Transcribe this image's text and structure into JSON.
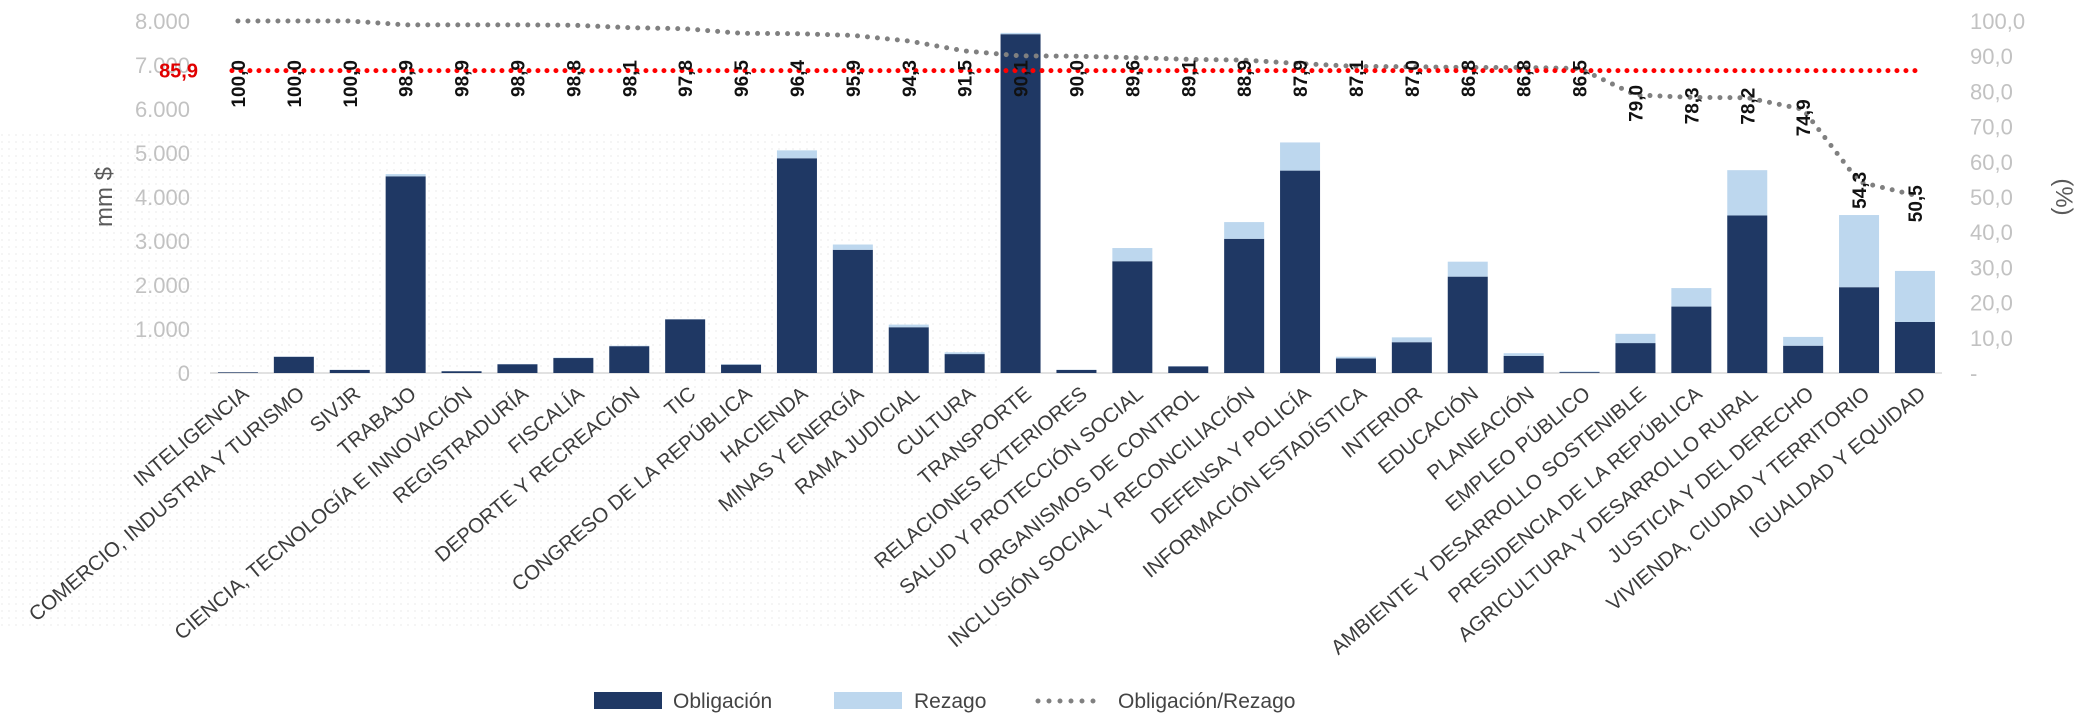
{
  "chart_data": {
    "type": "bar",
    "stacked": true,
    "categories": [
      "INTELIGENCIA",
      "COMERCIO, INDUSTRIA Y TURISMO",
      "SIVJR",
      "TRABAJO",
      "CIENCIA, TECNOLOGÍA E INNOVACIÓN",
      "REGISTRADURÍA",
      "FISCALÍA",
      "DEPORTE Y RECREACIÓN",
      "TIC",
      "CONGRESO DE LA REPÚBLICA",
      "HACIENDA",
      "MINAS Y ENERGÍA",
      "RAMA JUDICIAL",
      "CULTURA",
      "TRANSPORTE",
      "RELACIONES EXTERIORES",
      "SALUD Y PROTECCIÓN SOCIAL",
      "ORGANISMOS DE CONTROL",
      "INCLUSIÓN SOCIAL Y RECONCILIACIÓN",
      "DEFENSA Y POLICÍA",
      "INFORMACIÓN ESTADÍSTICA",
      "INTERIOR",
      "EDUCACIÓN",
      "PLANEACIÓN",
      "EMPLEO PÚBLICO",
      "AMBIENTE Y DESARROLLO SOSTENIBLE",
      "PRESIDENCIA DE LA REPÚBLICA",
      "AGRICULTURA Y DESARROLLO RURAL",
      "JUSTICIA Y DEL DERECHO",
      "VIVIENDA, CIUDAD Y TERRITORIO",
      "IGUALDAD Y EQUIDAD"
    ],
    "series": [
      {
        "name": "Obligación",
        "color": "#1f3864",
        "values": [
          15,
          370,
          70,
          4470,
          40,
          200,
          340,
          610,
          1220,
          190,
          4880,
          2800,
          1040,
          430,
          7700,
          70,
          2540,
          150,
          3050,
          4600,
          330,
          700,
          2190,
          390,
          20,
          680,
          1510,
          3580,
          620,
          1950,
          1160
        ]
      },
      {
        "name": "Rezago",
        "color": "#bdd7ee",
        "values": [
          0,
          5,
          2,
          50,
          2,
          5,
          10,
          10,
          5,
          10,
          180,
          120,
          60,
          40,
          30,
          5,
          300,
          5,
          380,
          640,
          40,
          110,
          340,
          60,
          15,
          210,
          420,
          1030,
          200,
          1640,
          1160
        ]
      },
      {
        "name": "Obligación/Rezago",
        "color": "#808080",
        "axis": "right",
        "style": "dotted-line",
        "values": [
          100.0,
          100.0,
          100.0,
          98.9,
          98.9,
          98.9,
          98.8,
          98.1,
          97.8,
          96.5,
          96.4,
          95.9,
          94.3,
          91.5,
          90.1,
          90.0,
          89.6,
          89.1,
          88.9,
          87.9,
          87.1,
          87.0,
          86.8,
          86.8,
          86.5,
          79.0,
          78.3,
          78.2,
          74.9,
          54.3,
          50.5
        ],
        "labels": [
          "100,0",
          "100,0",
          "100,0",
          "98,9",
          "98,9",
          "98,9",
          "98,8",
          "98,1",
          "97,8",
          "96,5",
          "96,4",
          "95,9",
          "94,3",
          "91,5",
          "90,1",
          "90,0",
          "89,6",
          "89,1",
          "88,9",
          "87,9",
          "87,1",
          "87,0",
          "86,8",
          "86,8",
          "86,5",
          "79,0",
          "78,3",
          "78,2",
          "74,9",
          "54,3",
          "50,5"
        ]
      }
    ],
    "reference_line": {
      "value": 85.9,
      "label": "85,9",
      "color": "#ff0000",
      "axis": "right"
    },
    "ylabel": "mm $",
    "y2label": "(%)",
    "ylim": [
      0,
      8000
    ],
    "y2lim": [
      0,
      100
    ],
    "yticks": [
      "0",
      "1.000",
      "2.000",
      "3.000",
      "4.000",
      "5.000",
      "6.000",
      "7.000",
      "8.000"
    ],
    "y2ticks": [
      "-",
      "10,0",
      "20,0",
      "30,0",
      "40,0",
      "50,0",
      "60,0",
      "70,0",
      "80,0",
      "90,0",
      "100,0"
    ],
    "grid": false,
    "legend": {
      "position": "bottom",
      "entries": [
        "Obligación",
        "Rezago",
        "Obligación/Rezago"
      ]
    }
  }
}
